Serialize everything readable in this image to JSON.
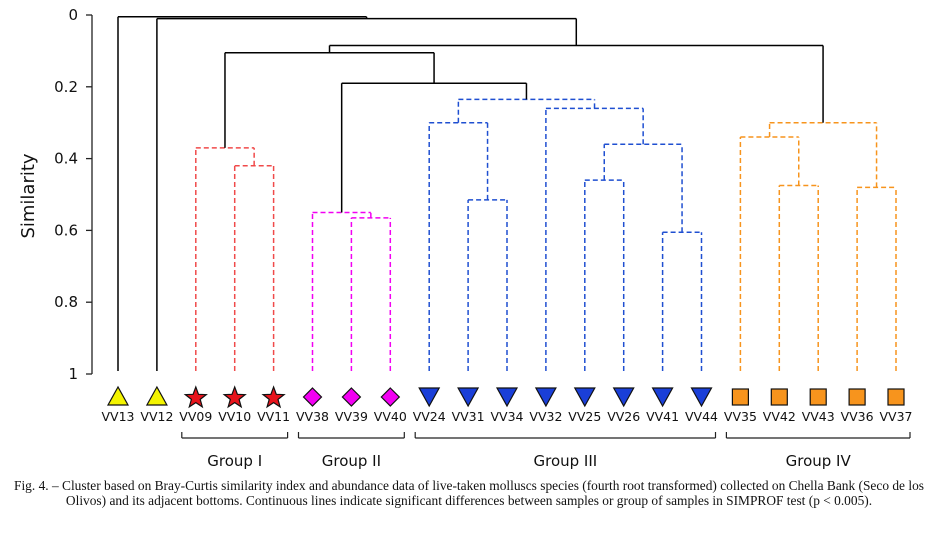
{
  "chart_data": {
    "type": "dendrogram",
    "ylabel": "Similarity",
    "yticks": [
      "0",
      "0.2",
      "0.4",
      "0.6",
      "0.8",
      "1"
    ],
    "ylim": [
      0,
      1
    ],
    "samples": [
      {
        "label": "VV13",
        "marker": "triangle-up",
        "color": "#f4f400"
      },
      {
        "label": "VV12",
        "marker": "triangle-up",
        "color": "#f4f400"
      },
      {
        "label": "VV09",
        "marker": "star",
        "color": "#e8141c"
      },
      {
        "label": "VV10",
        "marker": "star",
        "color": "#e8141c"
      },
      {
        "label": "VV11",
        "marker": "star",
        "color": "#e8141c"
      },
      {
        "label": "VV38",
        "marker": "diamond",
        "color": "#f200f2"
      },
      {
        "label": "VV39",
        "marker": "diamond",
        "color": "#f200f2"
      },
      {
        "label": "VV40",
        "marker": "diamond",
        "color": "#f200f2"
      },
      {
        "label": "VV24",
        "marker": "triangle-down",
        "color": "#1a3fd8"
      },
      {
        "label": "VV31",
        "marker": "triangle-down",
        "color": "#1a3fd8"
      },
      {
        "label": "VV34",
        "marker": "triangle-down",
        "color": "#1a3fd8"
      },
      {
        "label": "VV32",
        "marker": "triangle-down",
        "color": "#1a3fd8"
      },
      {
        "label": "VV25",
        "marker": "triangle-down",
        "color": "#1a3fd8"
      },
      {
        "label": "VV26",
        "marker": "triangle-down",
        "color": "#1a3fd8"
      },
      {
        "label": "VV41",
        "marker": "triangle-down",
        "color": "#1a3fd8"
      },
      {
        "label": "VV44",
        "marker": "triangle-down",
        "color": "#1a3fd8"
      },
      {
        "label": "VV35",
        "marker": "square",
        "color": "#f7941d"
      },
      {
        "label": "VV42",
        "marker": "square",
        "color": "#f7941d"
      },
      {
        "label": "VV43",
        "marker": "square",
        "color": "#f7941d"
      },
      {
        "label": "VV36",
        "marker": "square",
        "color": "#f7941d"
      },
      {
        "label": "VV37",
        "marker": "square",
        "color": "#f7941d"
      }
    ],
    "merges": [
      {
        "id": "r1",
        "left": "VV10",
        "right": "VV11",
        "similarity": 0.42,
        "style": "dashed",
        "color": "#f04a4a"
      },
      {
        "id": "r2",
        "left": "VV09",
        "right": "r1",
        "similarity": 0.37,
        "style": "dashed",
        "color": "#f04a4a"
      },
      {
        "id": "m1",
        "left": "VV39",
        "right": "VV40",
        "similarity": 0.565,
        "style": "dashed",
        "color": "#f200f2"
      },
      {
        "id": "m2",
        "left": "VV38",
        "right": "m1",
        "similarity": 0.55,
        "style": "dashed",
        "color": "#f200f2"
      },
      {
        "id": "b1",
        "left": "VV31",
        "right": "VV34",
        "similarity": 0.515,
        "style": "dashed",
        "color": "#1f4fd1"
      },
      {
        "id": "b2",
        "left": "VV24",
        "right": "b1",
        "similarity": 0.3,
        "style": "dashed",
        "color": "#1f4fd1"
      },
      {
        "id": "b3",
        "left": "VV41",
        "right": "VV44",
        "similarity": 0.605,
        "style": "dashed",
        "color": "#1f4fd1"
      },
      {
        "id": "b4",
        "left": "VV25",
        "right": "VV26",
        "similarity": 0.46,
        "style": "dashed",
        "color": "#1f4fd1"
      },
      {
        "id": "b5",
        "left": "b4",
        "right": "b3",
        "similarity": 0.36,
        "style": "dashed",
        "color": "#1f4fd1"
      },
      {
        "id": "b6",
        "left": "VV32",
        "right": "b5",
        "similarity": 0.26,
        "style": "dashed",
        "color": "#1f4fd1"
      },
      {
        "id": "b7",
        "left": "b2",
        "right": "b6",
        "similarity": 0.235,
        "style": "dashed",
        "color": "#1f4fd1"
      },
      {
        "id": "o1",
        "left": "VV42",
        "right": "VV43",
        "similarity": 0.475,
        "style": "dashed",
        "color": "#f7941d"
      },
      {
        "id": "o2",
        "left": "VV35",
        "right": "o1",
        "similarity": 0.34,
        "style": "dashed",
        "color": "#f7941d"
      },
      {
        "id": "o3",
        "left": "VV36",
        "right": "VV37",
        "similarity": 0.48,
        "style": "dashed",
        "color": "#f7941d"
      },
      {
        "id": "o4",
        "left": "o2",
        "right": "o3",
        "similarity": 0.3,
        "style": "dashed",
        "color": "#f7941d"
      },
      {
        "id": "k1",
        "left": "m2",
        "right": "b7",
        "similarity": 0.19,
        "style": "solid",
        "color": "#000000"
      },
      {
        "id": "k2",
        "left": "r2",
        "right": "k1",
        "similarity": 0.105,
        "style": "solid",
        "color": "#000000"
      },
      {
        "id": "k3",
        "left": "k2",
        "right": "o4",
        "similarity": 0.085,
        "style": "solid",
        "color": "#000000"
      },
      {
        "id": "k4",
        "left": "VV12",
        "right": "k3",
        "similarity": 0.01,
        "style": "solid",
        "color": "#000000"
      },
      {
        "id": "k5",
        "left": "VV13",
        "right": "k4",
        "similarity": 0.005,
        "style": "solid",
        "color": "#000000"
      }
    ],
    "groups": [
      {
        "label": "Group I",
        "first": "VV09",
        "last": "VV11"
      },
      {
        "label": "Group II",
        "first": "VV38",
        "last": "VV40"
      },
      {
        "label": "Group III",
        "first": "VV24",
        "last": "VV44"
      },
      {
        "label": "Group IV",
        "first": "VV35",
        "last": "VV37"
      }
    ]
  },
  "caption": "Fig. 4. – Cluster based on Bray-Curtis similarity index and abundance data of live-taken molluscs species (fourth root transformed) collected on Chella Bank (Seco de los Olivos) and its adjacent bottoms. Continuous lines indicate significant differences between samples or group of samples in SIMPROF test (p < 0.005)."
}
